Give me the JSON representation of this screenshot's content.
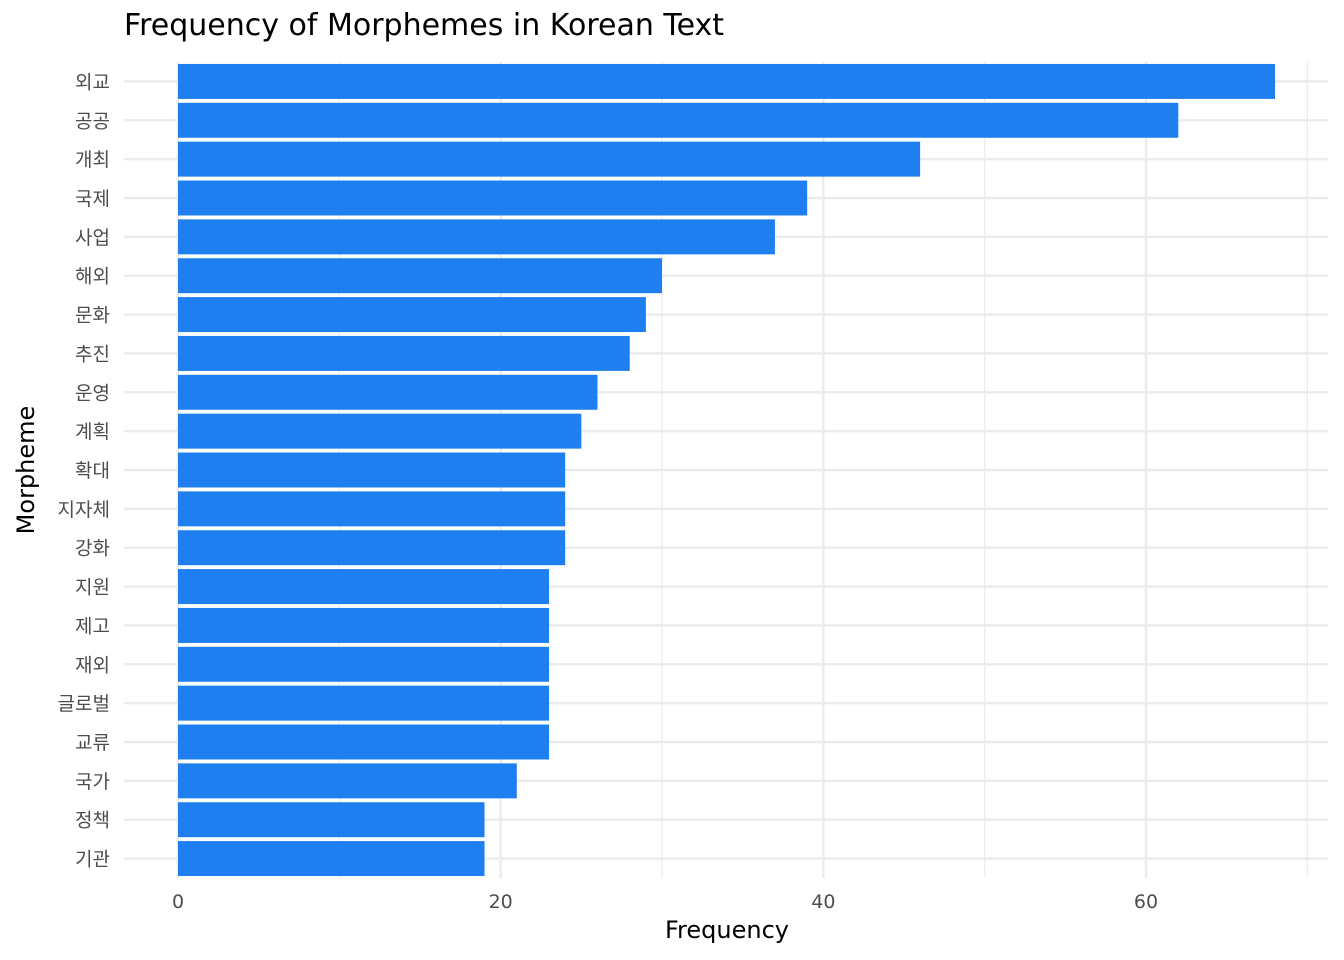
{
  "chart_data": {
    "type": "bar",
    "orientation": "horizontal",
    "title": "Frequency of Morphemes in Korean Text",
    "xlabel": "Frequency",
    "ylabel": "Morpheme",
    "xlim": [
      0,
      70
    ],
    "x_ticks": [
      0,
      20,
      40,
      60
    ],
    "grid": true,
    "bar_color": "#1F7FF0",
    "categories": [
      "외교",
      "공공",
      "개최",
      "국제",
      "사업",
      "해외",
      "문화",
      "추진",
      "운영",
      "계획",
      "확대",
      "지자체",
      "강화",
      "지원",
      "제고",
      "재외",
      "글로벌",
      "교류",
      "국가",
      "정책",
      "기관"
    ],
    "values": [
      68,
      62,
      46,
      39,
      37,
      30,
      29,
      28,
      26,
      25,
      24,
      24,
      24,
      23,
      23,
      23,
      23,
      23,
      21,
      19,
      19
    ]
  }
}
